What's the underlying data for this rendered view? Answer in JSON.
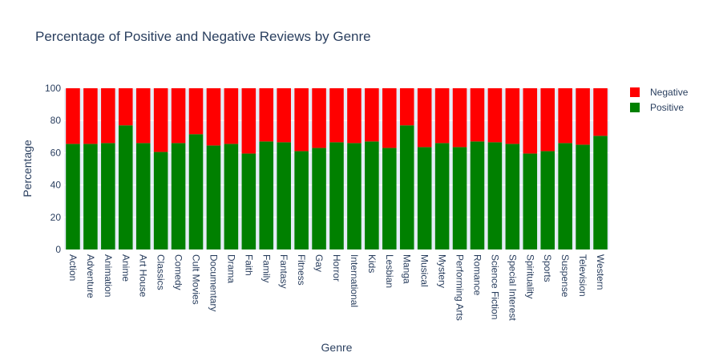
{
  "chart_data": {
    "type": "bar",
    "stacked": true,
    "title": "Percentage of Positive and Negative Reviews by Genre",
    "xlabel": "Genre",
    "ylabel": "Percentage",
    "ylim": [
      0,
      100
    ],
    "yticks": [
      0,
      20,
      40,
      60,
      80,
      100
    ],
    "grid": true,
    "legend_position": "top-right",
    "categories": [
      "Action",
      "Adventure",
      "Animation",
      "Anime",
      "Art House",
      "Classics",
      "Comedy",
      "Cult Movies",
      "Documentary",
      "Drama",
      "Faith",
      "Family",
      "Fantasy",
      "Fitness",
      "Gay",
      "Horror",
      "International",
      "Kids",
      "Lesbian",
      "Manga",
      "Musical",
      "Mystery",
      "Performing Arts",
      "Romance",
      "Science Fiction",
      "Special Interest",
      "Spirituality",
      "Sports",
      "Suspense",
      "Television",
      "Western"
    ],
    "series": [
      {
        "name": "Positive",
        "color": "#008000",
        "values": [
          65.5,
          65.5,
          66,
          77,
          66,
          60.5,
          66,
          71.5,
          64.5,
          65.5,
          59.5,
          67,
          66.5,
          61,
          63,
          66.5,
          66,
          67,
          63,
          77,
          63.5,
          66,
          63.5,
          67,
          66.5,
          65.5,
          59.5,
          61,
          66,
          65,
          70.5
        ]
      },
      {
        "name": "Negative",
        "color": "#ff0000",
        "values": [
          34.5,
          34.5,
          34,
          23,
          34,
          39.5,
          34,
          28.5,
          35.5,
          34.5,
          40.5,
          33,
          33.5,
          39,
          37,
          33.5,
          34,
          33,
          37,
          23,
          36.5,
          34,
          36.5,
          33,
          33.5,
          34.5,
          40.5,
          39,
          34,
          35,
          29.5
        ]
      }
    ],
    "legend_order": [
      "Negative",
      "Positive"
    ],
    "plot_background": "#e5ecf6",
    "text_color": "#2a3f5f"
  }
}
